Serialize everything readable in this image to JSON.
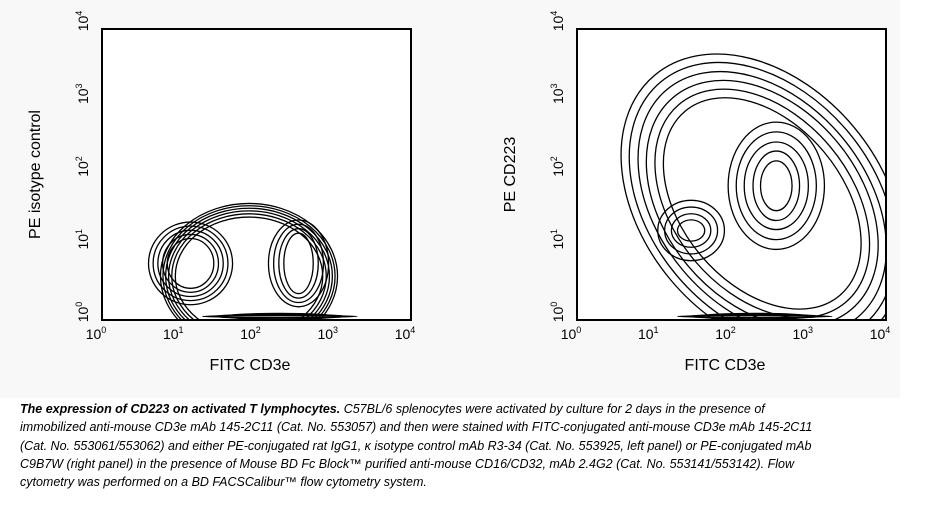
{
  "chart_data": [
    {
      "type": "contour",
      "panel": "left",
      "xlabel": "FITC CD3e",
      "ylabel": "PE isotype control",
      "x_scale": "log",
      "y_scale": "log",
      "xlim": [
        1,
        10000
      ],
      "ylim": [
        1,
        10000
      ],
      "x_ticks": [
        {
          "base": "10",
          "exp": "0",
          "value": 1
        },
        {
          "base": "10",
          "exp": "1",
          "value": 10
        },
        {
          "base": "10",
          "exp": "2",
          "value": 100
        },
        {
          "base": "10",
          "exp": "3",
          "value": 1000
        },
        {
          "base": "10",
          "exp": "4",
          "value": 10000
        }
      ],
      "y_ticks": [
        {
          "base": "10",
          "exp": "0",
          "value": 1
        },
        {
          "base": "10",
          "exp": "1",
          "value": 10
        },
        {
          "base": "10",
          "exp": "2",
          "value": 100
        },
        {
          "base": "10",
          "exp": "3",
          "value": 1000
        },
        {
          "base": "10",
          "exp": "4",
          "value": 10000
        }
      ],
      "contour_groups": [
        {
          "name": "outer",
          "cx": 80,
          "cy": 4,
          "rx": [
            14,
            13,
            12,
            11,
            10,
            9
          ],
          "ry": [
            10,
            9.3,
            8.6,
            7.9,
            7.2,
            6.5
          ],
          "lim_dx": [
            -66,
            160
          ],
          "lim_dy": [
            0,
            1
          ]
        },
        {
          "name": "peak-low-cd3",
          "cx": 14,
          "cy": 6,
          "rx": [
            2.0,
            2.3,
            2.65,
            3.05,
            3.5
          ],
          "ry": [
            2.2,
            2.5,
            2.85,
            3.25,
            3.7
          ]
        },
        {
          "name": "peak-high-cd3",
          "cx": 350,
          "cy": 6,
          "rx": [
            1.55,
            1.8,
            2.1,
            2.45
          ],
          "ry": [
            2.6,
            3.0,
            3.45,
            3.95
          ]
        },
        {
          "name": "baseline",
          "cx": 200,
          "cy": 1.12,
          "rx": [
            10,
            7,
            5
          ],
          "ry": [
            1.03,
            1.06,
            1.1
          ]
        }
      ]
    },
    {
      "type": "contour",
      "panel": "right",
      "xlabel": "FITC CD3e",
      "ylabel": "PE CD223",
      "x_scale": "log",
      "y_scale": "log",
      "xlim": [
        1,
        10000
      ],
      "ylim": [
        1,
        10000
      ],
      "x_ticks": [
        {
          "base": "10",
          "exp": "0",
          "value": 1
        },
        {
          "base": "10",
          "exp": "1",
          "value": 10
        },
        {
          "base": "10",
          "exp": "2",
          "value": 100
        },
        {
          "base": "10",
          "exp": "3",
          "value": 1000
        },
        {
          "base": "10",
          "exp": "4",
          "value": 10000
        }
      ],
      "y_ticks": [
        {
          "base": "10",
          "exp": "0",
          "value": 1
        },
        {
          "base": "10",
          "exp": "1",
          "value": 10
        },
        {
          "base": "10",
          "exp": "2",
          "value": 100
        },
        {
          "base": "10",
          "exp": "3",
          "value": 1000
        },
        {
          "base": "10",
          "exp": "4",
          "value": 10000
        }
      ],
      "contour_groups": [
        {
          "name": "outer-diagonal",
          "cx": 250,
          "cy": 40,
          "rx": [
            35,
            28,
            22,
            18,
            14,
            11
          ],
          "ry": [
            200,
            150,
            110,
            80,
            60,
            45
          ],
          "rotate_deg": -40,
          "lim_dx": [
            -70,
            190
          ],
          "lim_dy": [
            -320,
            0
          ]
        },
        {
          "name": "peak-high-cd3",
          "cx": 380,
          "cy": 70,
          "rx": [
            1.6,
            2.0,
            2.6,
            3.3,
            4.2
          ],
          "ry": [
            2.2,
            3.0,
            4.0,
            5.5,
            7.5
          ]
        },
        {
          "name": "peak-low-cd3",
          "cx": 30,
          "cy": 17,
          "rx": [
            1.5,
            1.8,
            2.2,
            2.7
          ],
          "ry": [
            1.4,
            1.7,
            2.1,
            2.6
          ]
        },
        {
          "name": "baseline",
          "cx": 200,
          "cy": 1.12,
          "rx": [
            10,
            7,
            5
          ],
          "ry": [
            1.03,
            1.06,
            1.1
          ]
        }
      ]
    }
  ],
  "caption": {
    "title": "The expression of CD223 on activated T lymphocytes.",
    "body": " C57BL/6 splenocytes were activated by culture for 2 days in the presence of immobilized anti-mouse CD3e mAb 145-2C11 (Cat. No. 553057) and then were stained with FITC-conjugated anti-mouse CD3e mAb 145-2C11 (Cat. No. 553061/553062) and either PE-conjugated rat IgG1, κ isotype control mAb R3-34 (Cat. No. 553925, left panel) or PE-conjugated mAb C9B7W (right panel) in the presence of Mouse BD Fc Block™ purified anti-mouse CD16/CD32, mAb 2.4G2 (Cat. No. 553141/553142). Flow cytometry was performed on a BD FACSCalibur™ flow cytometry system."
  }
}
